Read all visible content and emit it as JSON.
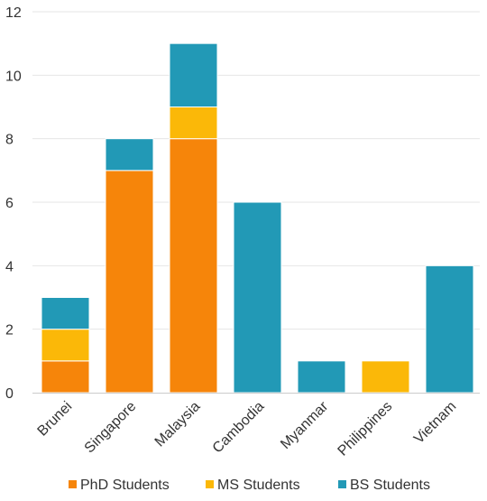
{
  "chart_data": {
    "type": "bar",
    "stacked": true,
    "categories": [
      "Brunei",
      "Singapore",
      "Malaysia",
      "Cambodia",
      "Myanmar",
      "Philippines",
      "Vietnam"
    ],
    "series": [
      {
        "name": "PhD Students",
        "color": "#f6850a",
        "values": [
          1,
          7,
          8,
          0,
          0,
          0,
          0
        ]
      },
      {
        "name": "MS Students",
        "color": "#fbb808",
        "values": [
          1,
          0,
          1,
          0,
          0,
          1,
          0
        ]
      },
      {
        "name": "BS Students",
        "color": "#2299b6",
        "values": [
          1,
          1,
          2,
          6,
          1,
          0,
          4
        ]
      }
    ],
    "ylim": [
      0,
      12
    ],
    "yticks": [
      0,
      2,
      4,
      6,
      8,
      10,
      12
    ],
    "grid": true,
    "legend": "bottom-center",
    "xlabel": "",
    "ylabel": ""
  }
}
